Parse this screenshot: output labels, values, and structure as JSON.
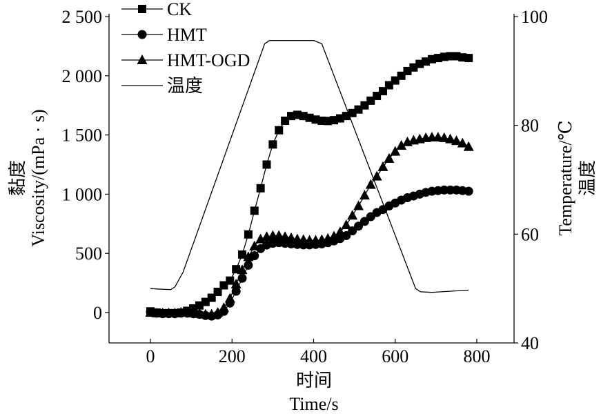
{
  "chart_data": {
    "type": "line",
    "title": "",
    "xlabel_cn": "时间",
    "xlabel": "Time/s",
    "ylabel_cn": "黏度",
    "ylabel": "Viscosity/(mPa · s)",
    "y2label": "Temperature/℃",
    "y2label_cn": "温度",
    "xlim": [
      -100,
      890
    ],
    "ylim": [
      -250,
      2500
    ],
    "y2lim": [
      40,
      100
    ],
    "xticks": [
      0,
      200,
      400,
      600,
      800
    ],
    "xtick_labels": [
      "0",
      "200",
      "400",
      "600",
      "800"
    ],
    "yticks": [
      0,
      500,
      1000,
      1500,
      2000,
      2500
    ],
    "ytick_labels": [
      "0",
      "500",
      "1 000",
      "1 500",
      "2 000",
      "2 500"
    ],
    "y2ticks": [
      40,
      60,
      80,
      100
    ],
    "y2tick_labels": [
      "40",
      "60",
      "80",
      "100"
    ],
    "grid": false,
    "legend_position": "top-left",
    "x": [
      0,
      15,
      30,
      45,
      60,
      75,
      90,
      105,
      120,
      135,
      150,
      165,
      180,
      195,
      210,
      225,
      240,
      255,
      270,
      285,
      300,
      315,
      330,
      345,
      360,
      375,
      390,
      405,
      420,
      435,
      450,
      465,
      480,
      495,
      510,
      525,
      540,
      555,
      570,
      585,
      600,
      615,
      630,
      645,
      660,
      675,
      690,
      705,
      720,
      735,
      750,
      765,
      780
    ],
    "series": [
      {
        "name": "CK",
        "marker": "square",
        "axis": "left",
        "values": [
          10,
          0,
          -5,
          -5,
          -5,
          0,
          15,
          35,
          60,
          90,
          125,
          175,
          230,
          270,
          366,
          490,
          660,
          860,
          1050,
          1250,
          1420,
          1540,
          1620,
          1660,
          1670,
          1660,
          1645,
          1630,
          1620,
          1618,
          1625,
          1640,
          1660,
          1685,
          1715,
          1750,
          1790,
          1830,
          1870,
          1920,
          1960,
          2000,
          2040,
          2070,
          2100,
          2120,
          2140,
          2150,
          2160,
          2165,
          2165,
          2155,
          2150
        ]
      },
      {
        "name": "HMT",
        "marker": "circle",
        "axis": "left",
        "values": [
          5,
          -5,
          -10,
          -10,
          -10,
          -5,
          -5,
          -10,
          -15,
          -25,
          -30,
          -20,
          10,
          80,
          180,
          290,
          400,
          480,
          540,
          570,
          585,
          590,
          585,
          580,
          575,
          572,
          572,
          575,
          580,
          590,
          605,
          625,
          650,
          690,
          730,
          770,
          810,
          845,
          870,
          900,
          925,
          950,
          970,
          985,
          1000,
          1015,
          1025,
          1030,
          1035,
          1035,
          1035,
          1030,
          1025
        ]
      },
      {
        "name": "HMT-OGD",
        "marker": "triangle",
        "axis": "left",
        "values": [
          0,
          -5,
          -5,
          -5,
          -5,
          0,
          0,
          -5,
          -10,
          -15,
          -15,
          0,
          40,
          120,
          240,
          360,
          470,
          560,
          620,
          640,
          650,
          650,
          640,
          630,
          620,
          615,
          610,
          610,
          615,
          625,
          645,
          680,
          740,
          820,
          900,
          990,
          1080,
          1150,
          1230,
          1300,
          1360,
          1410,
          1440,
          1455,
          1465,
          1475,
          1480,
          1480,
          1475,
          1465,
          1450,
          1430,
          1400
        ]
      },
      {
        "name": "温度",
        "marker": "none",
        "axis": "right",
        "points": [
          [
            0,
            50
          ],
          [
            20,
            49.9
          ],
          [
            50,
            49.8
          ],
          [
            60,
            50.3
          ],
          [
            80,
            53
          ],
          [
            280,
            95
          ],
          [
            292,
            95.6
          ],
          [
            400,
            95.6
          ],
          [
            420,
            95
          ],
          [
            650,
            50
          ],
          [
            662,
            49.4
          ],
          [
            690,
            49.3
          ],
          [
            780,
            49.7
          ]
        ]
      }
    ]
  }
}
